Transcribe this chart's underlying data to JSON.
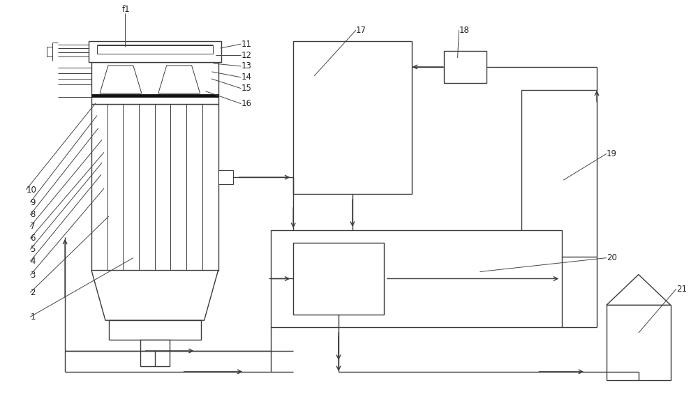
{
  "bg_color": "#ffffff",
  "line_color": "#3a3a3a",
  "lw": 1.0,
  "thin_lw": 0.7,
  "thick_lw": 3.5,
  "font_size": 8.5,
  "label_color": "#222222",
  "leader_color": "#444444"
}
